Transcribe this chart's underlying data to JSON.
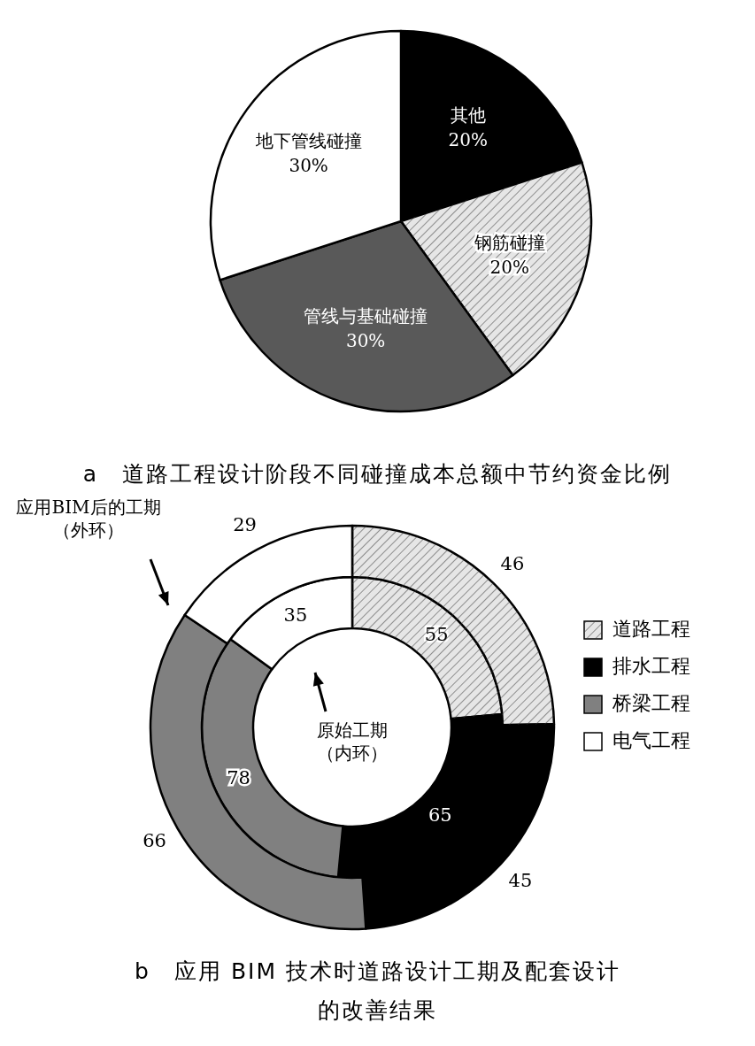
{
  "chart_data": [
    {
      "type": "pie",
      "title": "a　道路工程设计阶段不同碰撞成本总额中节约资金比例",
      "categories": [
        "其他",
        "钢筋碰撞",
        "管线与基础碰撞",
        "地下管线碰撞"
      ],
      "values": [
        20,
        20,
        30,
        30
      ],
      "colors": [
        "#000000",
        "#e6e6e6",
        "#595959",
        "#ffffff"
      ],
      "value_labels": [
        "20%",
        "20%",
        "30%",
        "30%"
      ]
    },
    {
      "type": "donut",
      "title": "b　应用 BIM 技术时道路设计工期及配套设计的改善结果",
      "categories": [
        "道路工程",
        "排水工程",
        "桥梁工程",
        "电气工程"
      ],
      "colors": [
        "#e6e6e6",
        "#000000",
        "#808080",
        "#ffffff"
      ],
      "series": [
        {
          "values": [
            55,
            65,
            78,
            35
          ]
        },
        {
          "values": [
            46,
            45,
            66,
            29
          ]
        }
      ],
      "data_labels": true,
      "legend": "right",
      "annotations": [
        "原始工期（内环）",
        "应用BIM后的工期（外环）"
      ]
    }
  ]
}
